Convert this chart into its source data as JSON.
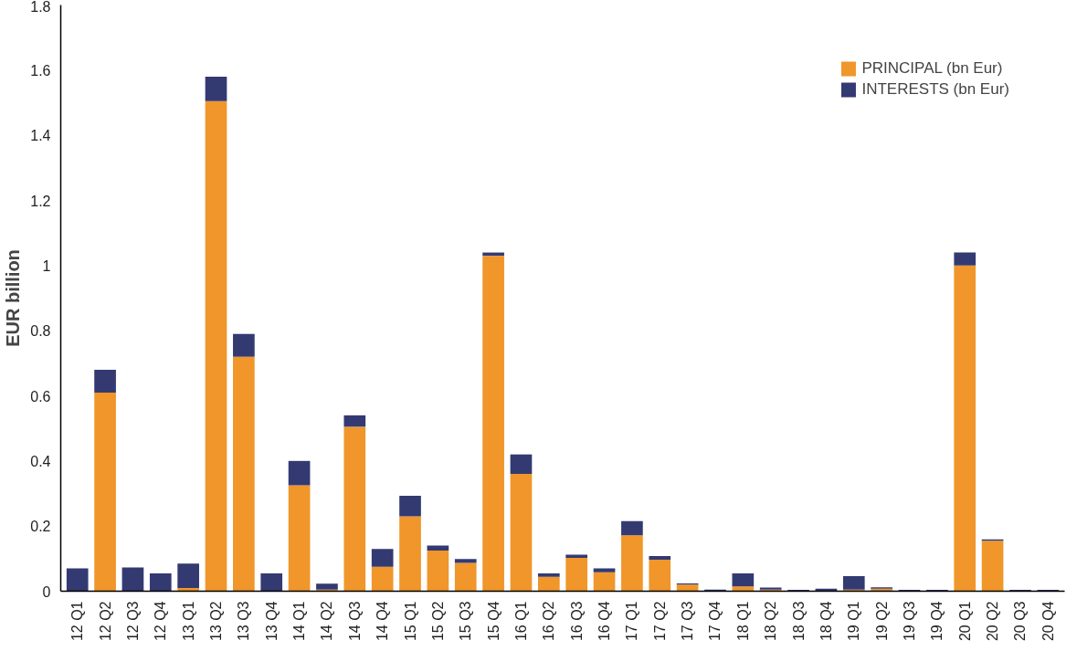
{
  "chart_data": {
    "type": "bar",
    "stacked": true,
    "ylabel": "EUR billion",
    "categories": [
      "12 Q1",
      "12 Q2",
      "12 Q3",
      "12 Q4",
      "13 Q1",
      "13 Q2",
      "13 Q3",
      "13 Q4",
      "14 Q1",
      "14 Q2",
      "14 Q3",
      "14 Q4",
      "15 Q1",
      "15 Q2",
      "15 Q3",
      "15 Q4",
      "16 Q1",
      "16 Q2",
      "16 Q3",
      "16 Q4",
      "17 Q1",
      "17 Q2",
      "17 Q3",
      "17 Q4",
      "18 Q1",
      "18 Q2",
      "18 Q3",
      "18 Q4",
      "19 Q1",
      "19 Q2",
      "19 Q3",
      "19 Q4",
      "20 Q1",
      "20 Q2",
      "20 Q3",
      "20 Q4"
    ],
    "series": [
      {
        "name": "PRINCIPAL (bn Eur)",
        "color": "#f0962a",
        "values": [
          null,
          0.61,
          null,
          null,
          0.01,
          1.505,
          0.72,
          null,
          0.325,
          0.005,
          0.505,
          0.075,
          0.23,
          0.125,
          0.087,
          1.03,
          0.36,
          0.044,
          0.102,
          0.058,
          0.172,
          0.097,
          0.02,
          null,
          0.015,
          0.005,
          null,
          null,
          0.005,
          0.008,
          null,
          null,
          1.0,
          0.155,
          null,
          null
        ]
      },
      {
        "name": "INTERESTS (bn Eur)",
        "color": "#333a72",
        "values": [
          0.07,
          0.07,
          0.073,
          0.055,
          0.075,
          0.075,
          0.07,
          0.055,
          0.075,
          0.018,
          0.035,
          0.055,
          0.063,
          0.015,
          0.012,
          0.01,
          0.06,
          0.011,
          0.01,
          0.012,
          0.043,
          0.011,
          0.004,
          0.005,
          0.04,
          0.006,
          0.004,
          0.008,
          0.041,
          0.004,
          0.004,
          0.004,
          0.04,
          0.004,
          0.004,
          0.004
        ]
      }
    ],
    "ylim": [
      0,
      1.8
    ],
    "yticks": [
      0,
      0.2,
      0.4,
      0.6,
      0.8,
      1,
      1.2,
      1.4,
      1.6,
      1.8
    ],
    "grid": false,
    "legend": "top right"
  }
}
